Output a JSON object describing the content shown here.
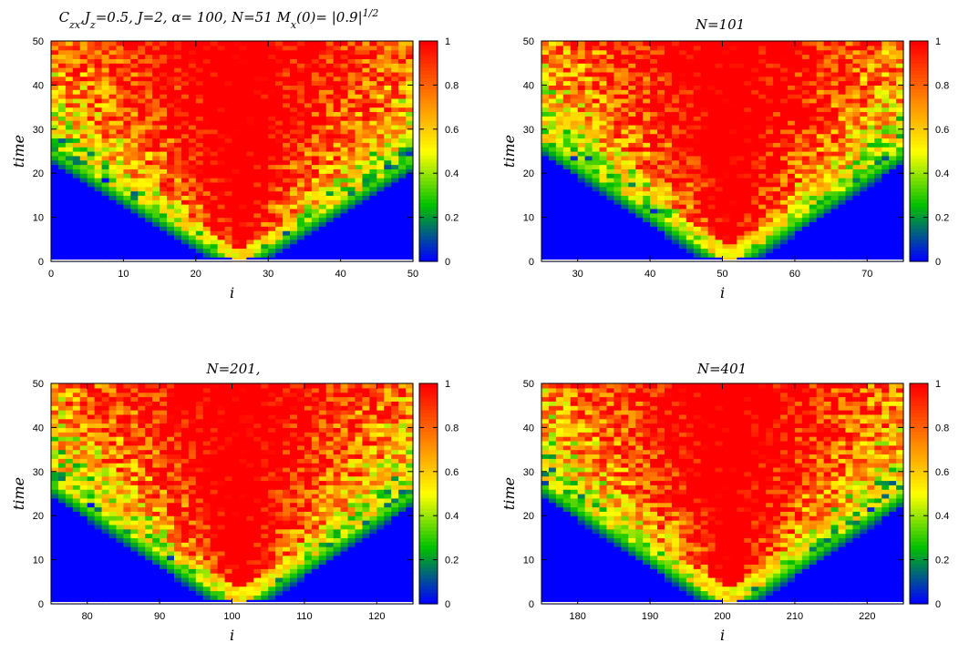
{
  "chart_data": [
    {
      "type": "heatmap",
      "title_parts": [
        "C",
        "zx",
        ",J",
        "z",
        "=0.5,  J=2, ",
        "α",
        "= 100, N=51 M",
        "x",
        "(0)= |0.9|",
        "1/2"
      ],
      "xlabel": "i",
      "ylabel": "time",
      "xlim": [
        0,
        50
      ],
      "ylim": [
        0,
        50
      ],
      "xticks": [
        "0",
        "10",
        "20",
        "30",
        "40",
        "50"
      ],
      "yticks": [
        "0",
        "10",
        "20",
        "30",
        "40",
        "50"
      ],
      "center": 26,
      "half_width": 25,
      "speed": 1.0,
      "colorbar": {
        "range": [
          0,
          1
        ],
        "ticks": [
          "0",
          "0.2",
          "0.4",
          "0.6",
          "0.8",
          "1"
        ],
        "colors": [
          "#0000ff",
          "#00c000",
          "#ffff00",
          "#ff8000",
          "#ff0000"
        ]
      }
    },
    {
      "type": "heatmap",
      "title": "N=101",
      "xlabel": "i",
      "ylabel": "time",
      "xlim": [
        25,
        75
      ],
      "ylim": [
        0,
        50
      ],
      "xticks": [
        "30",
        "40",
        "50",
        "60",
        "70"
      ],
      "yticks": [
        "0",
        "10",
        "20",
        "30",
        "40",
        "50"
      ],
      "center": 51,
      "half_width": 25,
      "speed": 0.92,
      "colorbar": {
        "range": [
          0,
          1
        ],
        "ticks": [
          "0",
          "0.2",
          "0.4",
          "0.6",
          "0.8",
          "1"
        ],
        "colors": [
          "#0000ff",
          "#00c000",
          "#ffff00",
          "#ff8000",
          "#ff0000"
        ]
      }
    },
    {
      "type": "heatmap",
      "title": "N=201,",
      "xlabel": "i",
      "ylabel": "time",
      "xlim": [
        75,
        125
      ],
      "ylim": [
        0,
        50
      ],
      "xticks": [
        "80",
        "90",
        "100",
        "110",
        "120"
      ],
      "yticks": [
        "0",
        "10",
        "20",
        "30",
        "40",
        "50"
      ],
      "center": 101,
      "half_width": 25,
      "speed": 0.92,
      "colorbar": {
        "range": [
          0,
          1
        ],
        "ticks": [
          "0",
          "0.2",
          "0.4",
          "0.6",
          "0.8",
          "1"
        ],
        "colors": [
          "#0000ff",
          "#00c000",
          "#ffff00",
          "#ff8000",
          "#ff0000"
        ]
      }
    },
    {
      "type": "heatmap",
      "title": "N=401",
      "xlabel": "i",
      "ylabel": "time",
      "xlim": [
        175,
        225
      ],
      "ylim": [
        0,
        50
      ],
      "xticks": [
        "180",
        "190",
        "200",
        "210",
        "220"
      ],
      "yticks": [
        "0",
        "10",
        "20",
        "30",
        "40",
        "50"
      ],
      "center": 201,
      "half_width": 25,
      "speed": 0.92,
      "colorbar": {
        "range": [
          0,
          1
        ],
        "ticks": [
          "0",
          "0.2",
          "0.4",
          "0.6",
          "0.8",
          "1"
        ],
        "colors": [
          "#0000ff",
          "#00c000",
          "#ffff00",
          "#ff8000",
          "#ff0000"
        ]
      }
    }
  ]
}
